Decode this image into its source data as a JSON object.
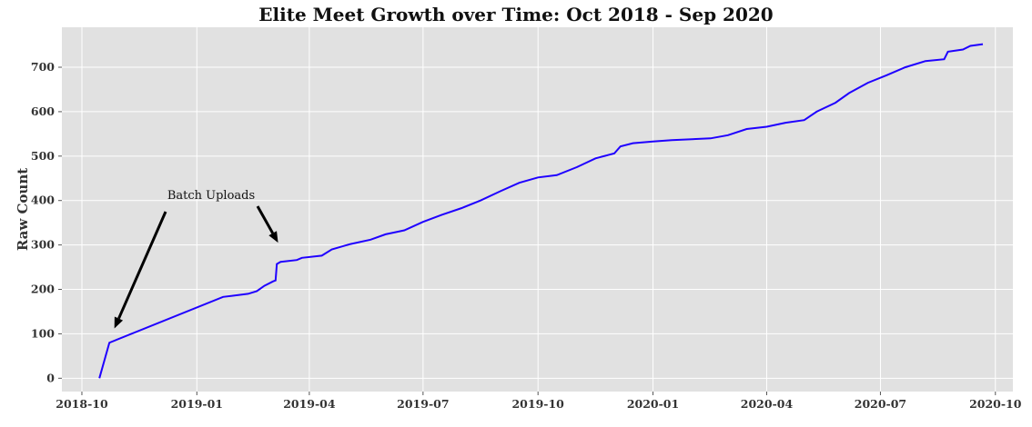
{
  "chart_data": {
    "type": "line",
    "title": "Elite Meet Growth over Time: Oct 2018 - Sep 2020",
    "xlabel": "",
    "ylabel": "Raw Count",
    "x_ticks": [
      "2018-10",
      "2019-01",
      "2019-04",
      "2019-07",
      "2019-10",
      "2020-01",
      "2020-04",
      "2020-07",
      "2020-10"
    ],
    "y_ticks": [
      0,
      100,
      200,
      300,
      400,
      500,
      600,
      700
    ],
    "xlim": [
      "2018-09-15",
      "2020-10-15"
    ],
    "ylim": [
      -30,
      790
    ],
    "grid": true,
    "background": "#e1e1e1",
    "line_color": "#1f00ff",
    "series": [
      {
        "name": "",
        "points": [
          [
            "2018-10-15",
            0
          ],
          [
            "2018-10-23",
            80
          ],
          [
            "2019-01-22",
            183
          ],
          [
            "2019-02-11",
            190
          ],
          [
            "2019-02-18",
            196
          ],
          [
            "2019-02-24",
            208
          ],
          [
            "2019-03-03",
            218
          ],
          [
            "2019-03-05",
            220
          ],
          [
            "2019-03-06",
            257
          ],
          [
            "2019-03-09",
            262
          ],
          [
            "2019-03-22",
            266
          ],
          [
            "2019-03-26",
            271
          ],
          [
            "2019-04-11",
            276
          ],
          [
            "2019-04-19",
            290
          ],
          [
            "2019-05-04",
            302
          ],
          [
            "2019-05-20",
            312
          ],
          [
            "2019-06-01",
            324
          ],
          [
            "2019-06-16",
            333
          ],
          [
            "2019-07-01",
            352
          ],
          [
            "2019-07-16",
            368
          ],
          [
            "2019-08-01",
            383
          ],
          [
            "2019-08-16",
            400
          ],
          [
            "2019-09-01",
            421
          ],
          [
            "2019-09-16",
            440
          ],
          [
            "2019-10-01",
            452
          ],
          [
            "2019-10-16",
            457
          ],
          [
            "2019-11-01",
            475
          ],
          [
            "2019-11-16",
            495
          ],
          [
            "2019-12-01",
            506
          ],
          [
            "2019-12-06",
            522
          ],
          [
            "2019-12-16",
            529
          ],
          [
            "2020-01-01",
            533
          ],
          [
            "2020-01-16",
            536
          ],
          [
            "2020-02-16",
            540
          ],
          [
            "2020-03-01",
            547
          ],
          [
            "2020-03-16",
            561
          ],
          [
            "2020-04-01",
            566
          ],
          [
            "2020-04-16",
            575
          ],
          [
            "2020-05-01",
            581
          ],
          [
            "2020-05-11",
            600
          ],
          [
            "2020-05-26",
            620
          ],
          [
            "2020-06-06",
            642
          ],
          [
            "2020-06-21",
            665
          ],
          [
            "2020-07-06",
            682
          ],
          [
            "2020-07-21",
            700
          ],
          [
            "2020-08-06",
            714
          ],
          [
            "2020-08-21",
            718
          ],
          [
            "2020-08-24",
            735
          ],
          [
            "2020-09-05",
            740
          ],
          [
            "2020-09-11",
            748
          ],
          [
            "2020-09-21",
            752
          ]
        ]
      }
    ],
    "annotations": [
      {
        "text": "Batch Uploads",
        "arrows_to": [
          [
            "2018-10-27",
            112
          ],
          [
            "2019-03-07",
            305
          ]
        ]
      }
    ]
  }
}
